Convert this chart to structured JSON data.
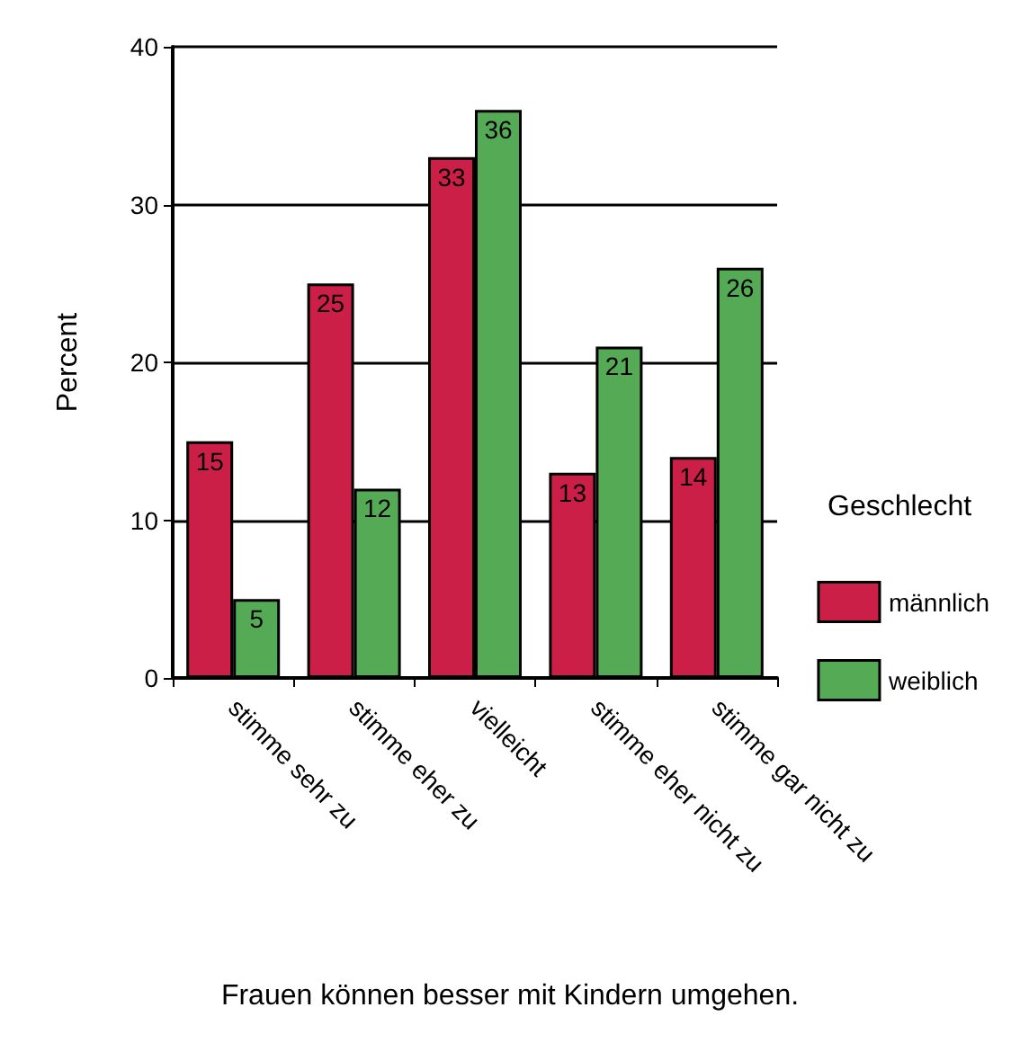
{
  "chart_data": {
    "type": "bar",
    "xlabel": "Frauen können besser mit Kindern umgehen.",
    "ylabel": "Percent",
    "legend_title": "Geschlecht",
    "categories": [
      "stimme sehr zu",
      "stimme eher zu",
      "vielleicht",
      "stimme eher nicht zu",
      "stimme gar nicht zu"
    ],
    "series": [
      {
        "name": "männlich",
        "color": "#cc1f47",
        "values": [
          15,
          25,
          33,
          13,
          14
        ]
      },
      {
        "name": "weiblich",
        "color": "#55aa55",
        "values": [
          5,
          12,
          36,
          21,
          26
        ]
      }
    ],
    "ylim": [
      0,
      40
    ],
    "yticks": [
      0,
      10,
      20,
      30,
      40
    ],
    "grid": "y",
    "legend": "right",
    "data_labels": true
  }
}
